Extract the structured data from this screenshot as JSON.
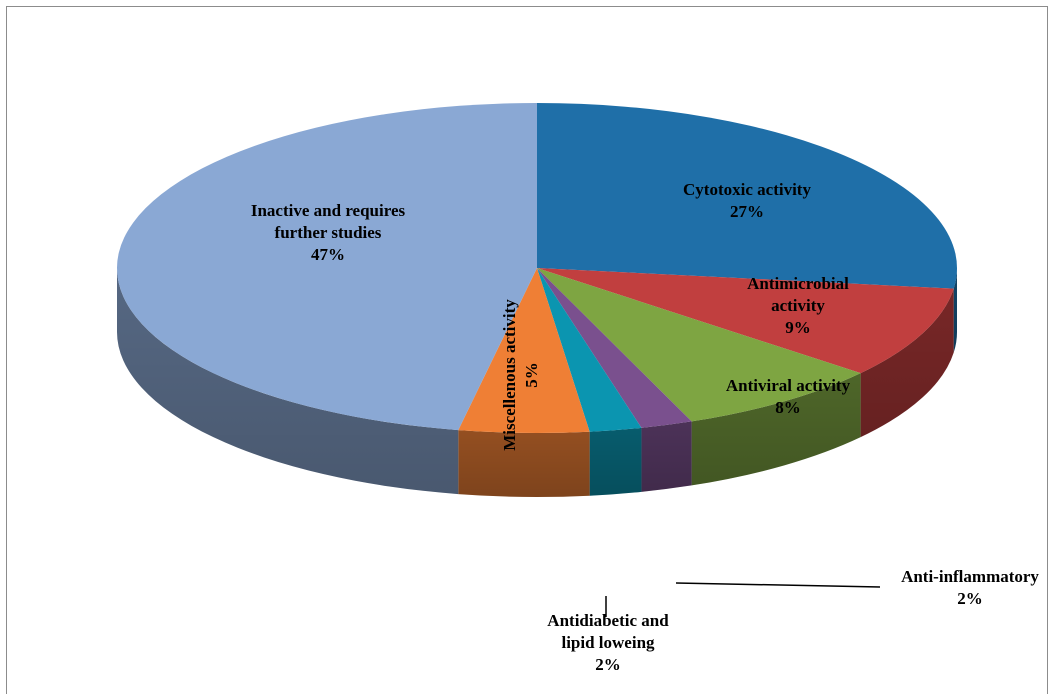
{
  "chart_data": {
    "type": "pie",
    "style": "3d",
    "slices": [
      {
        "label_lines": [
          "Cytotoxic activity"
        ],
        "value": 27,
        "pct_label": "27%",
        "color": "#1f6fa8"
      },
      {
        "label_lines": [
          "Antimicrobial",
          "activity"
        ],
        "value": 9,
        "pct_label": "9%",
        "color": "#c13f3f"
      },
      {
        "label_lines": [
          "Antiviral activity"
        ],
        "value": 8,
        "pct_label": "8%",
        "color": "#7ea542"
      },
      {
        "label_lines": [
          "Anti-inflammatory"
        ],
        "value": 2,
        "pct_label": "2%",
        "color": "#7a508e"
      },
      {
        "label_lines": [
          "Antidiabetic and",
          "lipid loweing"
        ],
        "value": 2,
        "pct_label": "2%",
        "color": "#0b95b0"
      },
      {
        "label_lines": [
          "Miscellenous activity"
        ],
        "value": 5,
        "pct_label": "5%",
        "color": "#ef7f35"
      },
      {
        "label_lines": [
          "Inactive and requires",
          "further studies"
        ],
        "value": 47,
        "pct_label": "47%",
        "color": "#8aa8d4"
      }
    ]
  }
}
